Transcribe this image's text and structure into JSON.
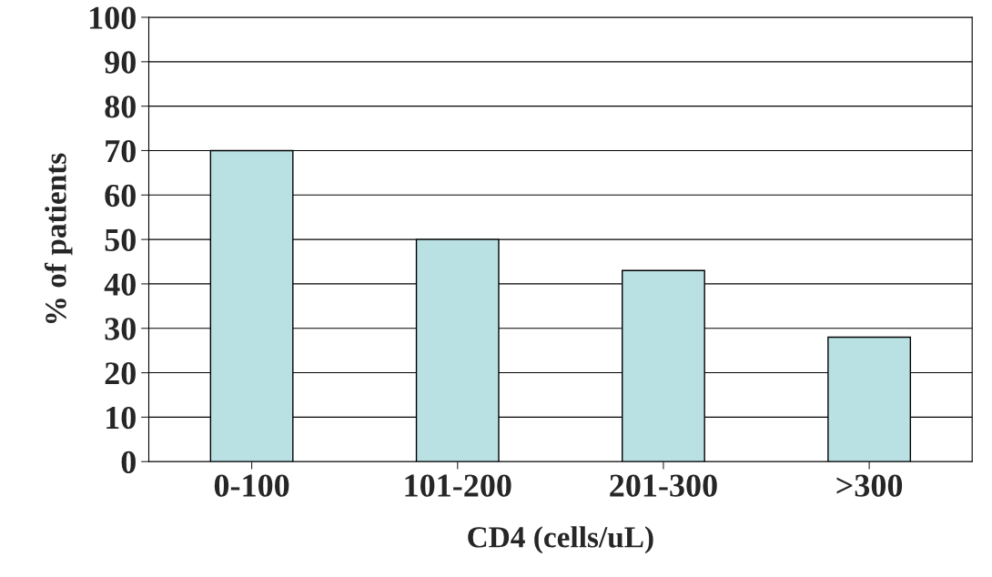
{
  "chart_data": {
    "type": "bar",
    "xlabel": "CD4 (cells/uL)",
    "ylabel": "% of patients",
    "categories": [
      "0-100",
      "101-200",
      "201-300",
      ">300"
    ],
    "values": [
      70,
      50,
      43,
      28
    ],
    "color": "#b9e0e3",
    "ylim": [
      0,
      100
    ],
    "yticks": [
      0,
      10,
      20,
      30,
      40,
      50,
      60,
      70,
      80,
      90,
      100
    ],
    "grid": "y"
  }
}
